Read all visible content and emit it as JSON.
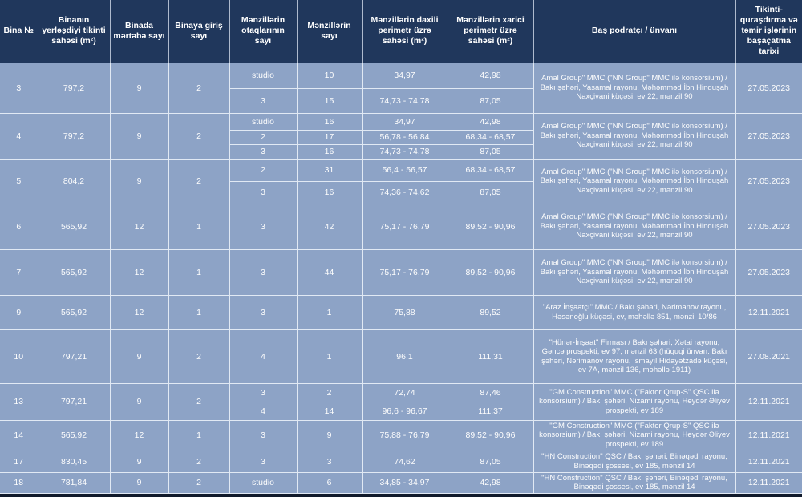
{
  "colors": {
    "header_bg": "#20375c",
    "cell_bg": "#8da3c6",
    "grid_line": "#e1e9f4",
    "text": "#ffffff",
    "bottom_bar": "#111a2b"
  },
  "table": {
    "headers": [
      "Bina №",
      "Binanın yerləşdiyi tikinti sahəsi (m²)",
      "Binada mərtəbə sayı",
      "Binaya giriş sayı",
      "Mənzillərin otaqlarının sayı",
      "Mənzillərin sayı",
      "Mənzillərin daxili perimetr üzrə sahəsi (m²)",
      "Mənzillərin xarici perimetr üzrə sahəsi (m²)",
      "Baş podratçı / ünvanı",
      "Tikinti-quraşdırma və təmir işlərinin başaçatma tarixi"
    ],
    "groups": [
      {
        "no": "3",
        "area": "797,2",
        "floors": "9",
        "entrances": "2",
        "units": [
          {
            "rooms": "studio",
            "count": "10",
            "inner": "34,97",
            "outer": "42,98"
          },
          {
            "rooms": "3",
            "count": "15",
            "inner": "74,73 - 74,78",
            "outer": "87,05"
          }
        ],
        "contractor": "Amal Group\" MMC (\"NN Group\" MMC ilə konsorsium) / Bakı şəhəri, Yasamal rayonu, Məhəmməd İbn Hinduşah Naxçivani küçəsi, ev 22, mənzil 90",
        "date": "27.05.2023"
      },
      {
        "no": "4",
        "area": "797,2",
        "floors": "9",
        "entrances": "2",
        "units": [
          {
            "rooms": "studio",
            "count": "16",
            "inner": "34,97",
            "outer": "42,98"
          },
          {
            "rooms": "2",
            "count": "17",
            "inner": "56,78 - 56,84",
            "outer": "68,34 - 68,57"
          },
          {
            "rooms": "3",
            "count": "16",
            "inner": "74,73 - 74,78",
            "outer": "87,05"
          }
        ],
        "contractor": "Amal Group\" MMC (\"NN Group\" MMC ilə konsorsium) / Bakı şəhəri, Yasamal rayonu, Məhəmməd İbn Hinduşah Naxçivani küçəsi, ev 22, mənzil 90",
        "date": "27.05.2023"
      },
      {
        "no": "5",
        "area": "804,2",
        "floors": "9",
        "entrances": "2",
        "units": [
          {
            "rooms": "2",
            "count": "31",
            "inner": "56,4 - 56,57",
            "outer": "68,34 - 68,57"
          },
          {
            "rooms": "3",
            "count": "16",
            "inner": "74,36 - 74,62",
            "outer": "87,05"
          }
        ],
        "contractor": "Amal Group\" MMC (\"NN Group\" MMC ilə konsorsium) / Bakı şəhəri, Yasamal rayonu, Məhəmməd İbn Hinduşah Naxçivani küçəsi, ev 22, mənzil 90",
        "date": "27.05.2023"
      },
      {
        "no": "6",
        "area": "565,92",
        "floors": "12",
        "entrances": "1",
        "units": [
          {
            "rooms": "3",
            "count": "42",
            "inner": "75,17 - 76,79",
            "outer": "89,52 - 90,96"
          }
        ],
        "contractor": "Amal Group\" MMC (\"NN Group\" MMC ilə konsorsium) / Bakı şəhəri, Yasamal rayonu, Məhəmməd İbn Hinduşah Naxçivani küçəsi, ev 22, mənzil 90",
        "date": "27.05.2023"
      },
      {
        "no": "7",
        "area": "565,92",
        "floors": "12",
        "entrances": "1",
        "units": [
          {
            "rooms": "3",
            "count": "44",
            "inner": "75,17 - 76,79",
            "outer": "89,52 - 90,96"
          }
        ],
        "contractor": "Amal Group\" MMC (\"NN Group\" MMC ilə konsorsium) / Bakı şəhəri, Yasamal rayonu, Məhəmməd İbn Hinduşah Naxçivani küçəsi, ev 22, mənzil 90",
        "date": "27.05.2023"
      },
      {
        "no": "9",
        "area": "565,92",
        "floors": "12",
        "entrances": "1",
        "units": [
          {
            "rooms": "3",
            "count": "1",
            "inner": "75,88",
            "outer": "89,52"
          }
        ],
        "contractor": "\"Araz İnşaatçı\" MMC / Bakı şəhəri, Nərimanov rayonu, Həsənoğlu küçəsi, ev, məhəllə 851, mənzil 10/86",
        "date": "12.11.2021"
      },
      {
        "no": "10",
        "area": "797,21",
        "floors": "9",
        "entrances": "2",
        "units": [
          {
            "rooms": "4",
            "count": "1",
            "inner": "96,1",
            "outer": "111,31"
          }
        ],
        "contractor": "\"Hünər-İnşaat\" Firması / Bakı şəhəri, Xətai rayonu, Gəncə prospekti, ev 97, mənzil 63 (hüquqi ünvan: Bakı şəhəri, Nərimanov rayonu, İsmayıl Hidayətzadə küçəsi, ev 7A, mənzil 136, məhəllə 1911)",
        "date": "27.08.2021"
      },
      {
        "no": "13",
        "area": "797,21",
        "floors": "9",
        "entrances": "2",
        "units": [
          {
            "rooms": "3",
            "count": "2",
            "inner": "72,74",
            "outer": "87,46"
          },
          {
            "rooms": "4",
            "count": "14",
            "inner": "96,6 - 96,67",
            "outer": "111,37"
          }
        ],
        "contractor": "\"GM Construction\" MMC (\"Faktor Qrup-S\" QSC ilə konsorsium) / Bakı şəhəri, Nizami rayonu, Heydər Əliyev prospekti, ev 189",
        "date": "12.11.2021"
      },
      {
        "no": "14",
        "area": "565,92",
        "floors": "12",
        "entrances": "1",
        "units": [
          {
            "rooms": "3",
            "count": "9",
            "inner": "75,88 - 76,79",
            "outer": "89,52 - 90,96"
          }
        ],
        "contractor": "\"GM Construction\" MMC (\"Faktor Qrup-S\" QSC ilə konsorsium) / Bakı şəhəri, Nizami rayonu, Heydər Əliyev prospekti, ev 189",
        "date": "12.11.2021"
      },
      {
        "no": "17",
        "area": "830,45",
        "floors": "9",
        "entrances": "2",
        "units": [
          {
            "rooms": "3",
            "count": "3",
            "inner": "74,62",
            "outer": "87,05"
          }
        ],
        "contractor": "\"HN Construction\" QSC / Bakı şəhəri, Binəqədi rayonu, Binəqədi şossesi, ev 185, mənzil 14",
        "date": "12.11.2021"
      },
      {
        "no": "18",
        "area": "781,84",
        "floors": "9",
        "entrances": "2",
        "units": [
          {
            "rooms": "studio",
            "count": "6",
            "inner": "34,85 - 34,97",
            "outer": "42,98"
          }
        ],
        "contractor": "\"HN Construction\" QSC / Bakı şəhəri, Binəqədi rayonu, Binəqədi şossesi, ev 185, mənzil 14",
        "date": "12.11.2021"
      }
    ]
  }
}
